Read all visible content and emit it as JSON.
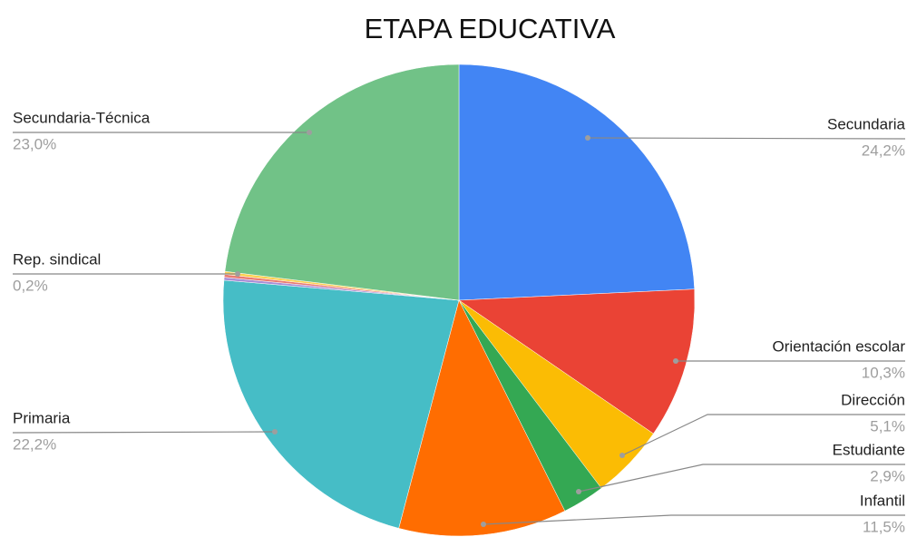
{
  "chart_data": {
    "type": "pie",
    "title": "ETAPA EDUCATIVA",
    "categories": [
      "Secundaria",
      "Orientación escolar",
      "Dirección",
      "Estudiante",
      "Infantil",
      "Primaria",
      null,
      "Rep. sindical",
      null,
      "Secundaria-Técnica"
    ],
    "values": [
      24.2,
      10.3,
      5.1,
      2.9,
      11.5,
      22.2,
      0.2,
      0.2,
      0.2,
      23.0
    ],
    "value_labels": [
      "24,2%",
      "10,3%",
      "5,1%",
      "2,9%",
      "11,5%",
      "22,2%",
      null,
      "0,2%",
      null,
      "23,0%"
    ],
    "colors": [
      "#4285f4",
      "#ea4335",
      "#fbbc04",
      "#34a853",
      "#ff6d01",
      "#46bdc6",
      "#a98ed6",
      "#ea7b72",
      "#fcd04f",
      "#71c287"
    ]
  }
}
